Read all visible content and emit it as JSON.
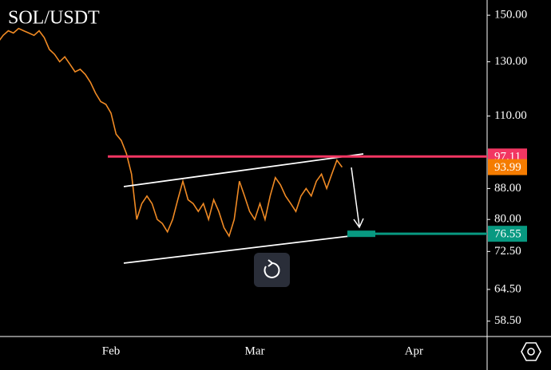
{
  "chart_data": {
    "type": "line",
    "title": "SOL/USDT",
    "categories": [
      null,
      null,
      null,
      null,
      null,
      null,
      null,
      null,
      null,
      null,
      null,
      null,
      null,
      null,
      null,
      null,
      null,
      null,
      null,
      null,
      null,
      null,
      "Feb",
      null,
      null,
      null,
      null,
      null,
      null,
      null,
      null,
      null,
      null,
      null,
      null,
      null,
      null,
      null,
      null,
      null,
      null,
      null,
      null,
      null,
      null,
      null,
      null,
      null,
      null,
      null,
      "Mar",
      null,
      null,
      null,
      null,
      null,
      null,
      null,
      null,
      null,
      null,
      null,
      null,
      null,
      null,
      null,
      null,
      null,
      null,
      null,
      null,
      null,
      null,
      null,
      null,
      null,
      null,
      null,
      null,
      null,
      null,
      "Apr",
      null,
      null,
      null,
      null,
      null,
      null,
      null,
      null,
      null,
      null,
      null
    ],
    "series": [
      {
        "name": "SOL/USDT",
        "color": "#f08a24",
        "values": [
          138,
          141,
          143,
          142,
          144,
          143,
          142,
          141,
          143,
          140,
          135,
          133,
          130,
          132,
          129,
          126,
          127,
          125,
          122,
          118,
          115,
          114,
          111,
          104,
          102,
          98,
          92,
          80,
          84,
          86,
          84,
          80,
          79,
          77,
          80,
          85,
          90,
          85,
          84,
          82,
          84,
          80,
          85,
          82,
          78,
          76,
          80,
          90,
          86,
          82,
          80,
          84,
          80,
          86,
          91,
          89,
          86,
          84,
          82,
          86,
          88,
          86,
          90,
          92,
          88,
          92,
          96,
          93.99,
          null,
          null,
          null,
          null,
          null,
          null,
          null,
          null,
          null,
          null,
          null,
          null,
          null,
          null,
          null,
          null,
          null,
          null,
          null,
          null,
          null,
          null,
          null,
          null,
          null
        ]
      }
    ],
    "log_scale": true,
    "ylim": [
      55.8,
      157.2
    ],
    "yticks": [
      {
        "value": 150,
        "label": "150.00"
      },
      {
        "value": 130,
        "label": "130.00"
      },
      {
        "value": 110,
        "label": "110.00"
      },
      {
        "value": 88,
        "label": "88.00"
      },
      {
        "value": 80,
        "label": "80.00"
      },
      {
        "value": 72.5,
        "label": "72.50"
      },
      {
        "value": 64.5,
        "label": "64.50"
      },
      {
        "value": 58.5,
        "label": "58.50"
      }
    ],
    "levels": [
      {
        "value": 97.11,
        "color": "#f23662",
        "line": true
      },
      {
        "value": 93.99,
        "color": "#f57c00",
        "line": false
      },
      {
        "value": 76.55,
        "color": "#089981",
        "line": true
      }
    ]
  }
}
